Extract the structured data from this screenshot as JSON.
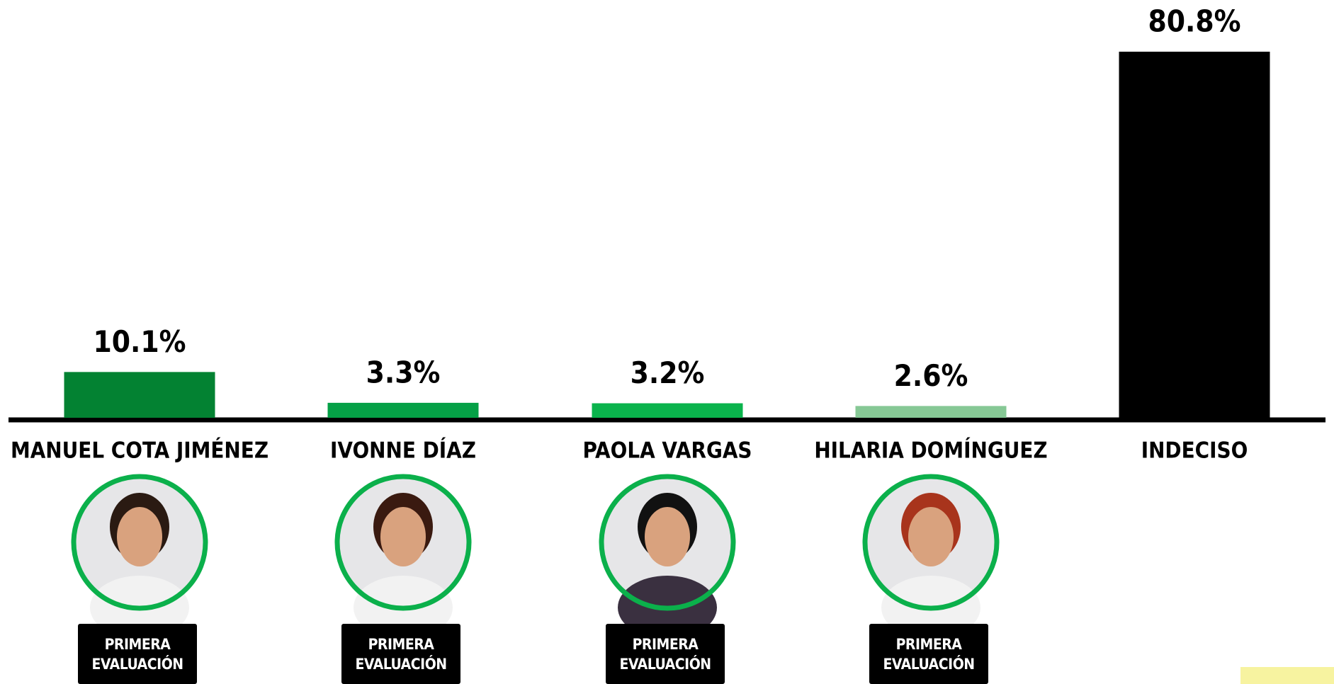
{
  "chart_data": {
    "type": "bar",
    "categories": [
      "MANUEL COTA JIMÉNEZ",
      "IVONNE DÍAZ",
      "PAOLA VARGAS",
      "HILARIA DOMÍNGUEZ",
      "INDECISO"
    ],
    "values": [
      10.1,
      3.3,
      3.2,
      2.6,
      80.8
    ],
    "value_labels": [
      "10.1%",
      "3.3%",
      "3.2%",
      "2.6%",
      "80.8%"
    ],
    "colors": [
      "#038232",
      "#05a046",
      "#0ab34c",
      "#86c895",
      "#000000"
    ],
    "badges": [
      "PRIMERA EVALUACIÓN",
      "PRIMERA EVALUACIÓN",
      "PRIMERA EVALUACIÓN",
      "PRIMERA EVALUACIÓN"
    ]
  }
}
